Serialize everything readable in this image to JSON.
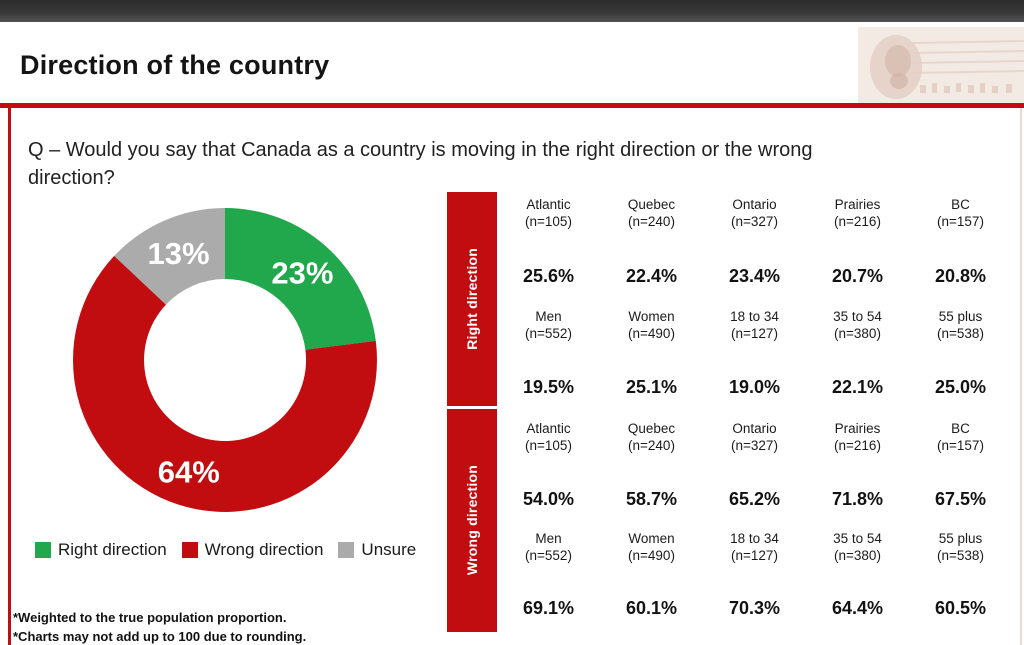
{
  "header": {
    "title": "Direction of the country"
  },
  "question": {
    "text": "Q – Would you say that Canada as a country is moving in the right direction or the wrong direction?"
  },
  "colors": {
    "accent_red": "#c20d10",
    "green": "#21a74c",
    "gray": "#ababab",
    "label_white": "#ffffff",
    "frame_right_pink": "#dda9a9"
  },
  "chart_data": {
    "type": "pie",
    "subtype": "donut",
    "title": "Direction of the country",
    "start_angle_deg": 0,
    "direction": "clockwise",
    "slices": [
      {
        "label": "Right direction",
        "value": 23,
        "display": "23%",
        "color": "#21a74c"
      },
      {
        "label": "Wrong direction",
        "value": 64,
        "display": "64%",
        "color": "#c20d10"
      },
      {
        "label": "Unsure",
        "value": 13,
        "display": "13%",
        "color": "#ababab"
      }
    ],
    "data_label_color": "#ffffff",
    "legend_position": "bottom"
  },
  "legend": {
    "items": [
      {
        "label": "Right direction",
        "color": "#21a74c"
      },
      {
        "label": "Wrong direction",
        "color": "#c20d10"
      },
      {
        "label": "Unsure",
        "color": "#ababab"
      }
    ]
  },
  "table": {
    "sections": [
      {
        "title": "Right direction",
        "groups": [
          {
            "columns": [
              {
                "label": "Atlantic",
                "n": "(n=105)"
              },
              {
                "label": "Quebec",
                "n": "(n=240)"
              },
              {
                "label": "Ontario",
                "n": "(n=327)"
              },
              {
                "label": "Prairies",
                "n": "(n=216)"
              },
              {
                "label": "BC",
                "n": "(n=157)"
              }
            ],
            "values": [
              "25.6%",
              "22.4%",
              "23.4%",
              "20.7%",
              "20.8%"
            ]
          },
          {
            "columns": [
              {
                "label": "Men",
                "n": "(n=552)"
              },
              {
                "label": "Women",
                "n": "(n=490)"
              },
              {
                "label": "18 to 34",
                "n": "(n=127)"
              },
              {
                "label": "35 to 54",
                "n": "(n=380)"
              },
              {
                "label": "55 plus",
                "n": "(n=538)"
              }
            ],
            "values": [
              "19.5%",
              "25.1%",
              "19.0%",
              "22.1%",
              "25.0%"
            ]
          }
        ]
      },
      {
        "title": "Wrong direction",
        "groups": [
          {
            "columns": [
              {
                "label": "Atlantic",
                "n": "(n=105)"
              },
              {
                "label": "Quebec",
                "n": "(n=240)"
              },
              {
                "label": "Ontario",
                "n": "(n=327)"
              },
              {
                "label": "Prairies",
                "n": "(n=216)"
              },
              {
                "label": "BC",
                "n": "(n=157)"
              }
            ],
            "values": [
              "54.0%",
              "58.7%",
              "65.2%",
              "71.8%",
              "67.5%"
            ]
          },
          {
            "columns": [
              {
                "label": "Men",
                "n": "(n=552)"
              },
              {
                "label": "Women",
                "n": "(n=490)"
              },
              {
                "label": "18 to 34",
                "n": "(n=127)"
              },
              {
                "label": "35 to 54",
                "n": "(n=380)"
              },
              {
                "label": "55 plus",
                "n": "(n=538)"
              }
            ],
            "values": [
              "69.1%",
              "60.1%",
              "70.3%",
              "64.4%",
              "60.5%"
            ]
          }
        ]
      }
    ]
  },
  "footnotes": [
    "*Weighted to the true population proportion.",
    "*Charts may not add up to 100 due to rounding."
  ]
}
